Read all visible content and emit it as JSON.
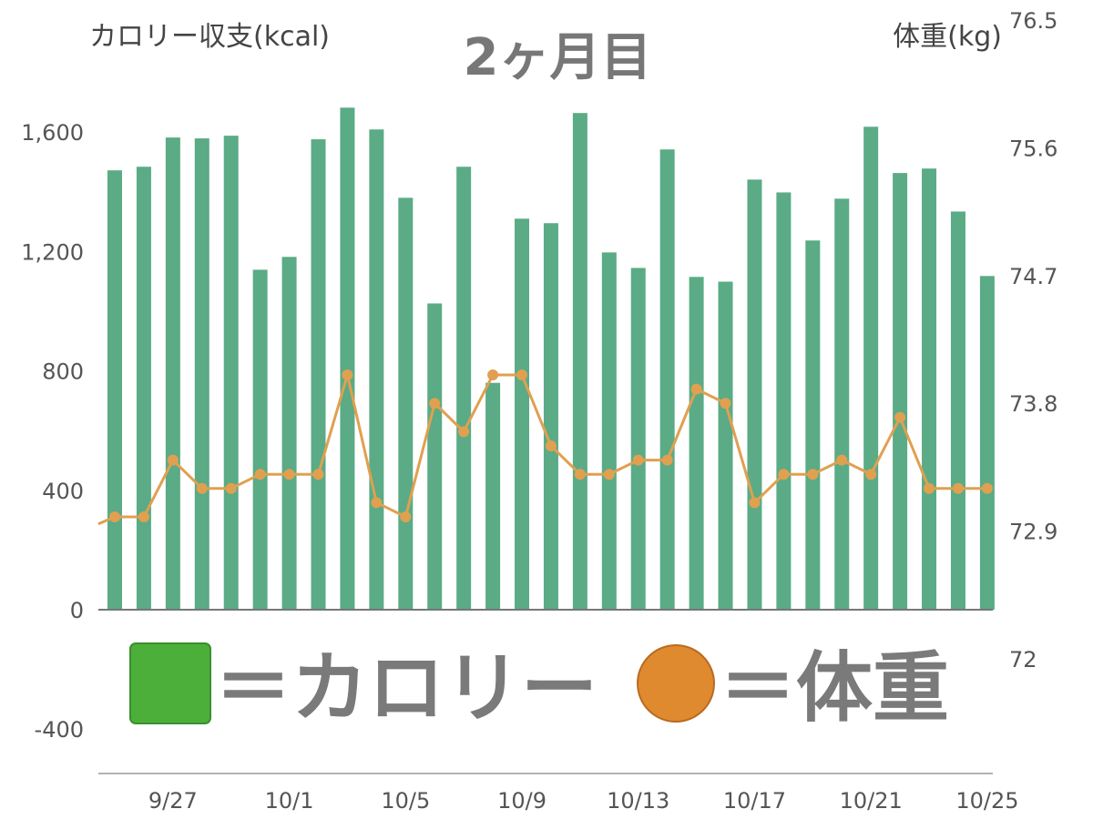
{
  "chart_data": {
    "type": "bar+line",
    "title": "2ヶ月目",
    "ylabel_left": "カロリー収支(kcal)",
    "ylabel_right": "体重(kg)",
    "ylim_left": [
      -400,
      1600
    ],
    "yticks_left": [
      "-400",
      "0",
      "400",
      "800",
      "1,200",
      "1,600"
    ],
    "yticks_left_values": [
      -400,
      0,
      400,
      800,
      1200,
      1600
    ],
    "ylim_right": [
      72,
      76.5
    ],
    "yticks_right": [
      "72",
      "72.9",
      "73.8",
      "74.7",
      "75.6",
      "76.5"
    ],
    "yticks_right_values": [
      72,
      72.9,
      73.8,
      74.7,
      75.6,
      76.5
    ],
    "categories": [
      "9/25",
      "9/26",
      "9/27",
      "9/28",
      "9/29",
      "9/30",
      "10/1",
      "10/2",
      "10/3",
      "10/4",
      "10/5",
      "10/6",
      "10/7",
      "10/8",
      "10/9",
      "10/10",
      "10/11",
      "10/12",
      "10/13",
      "10/14",
      "10/15",
      "10/16",
      "10/17",
      "10/18",
      "10/19",
      "10/20",
      "10/21",
      "10/22",
      "10/23",
      "10/24",
      "10/25"
    ],
    "xtick_labels": [
      "9/27",
      "10/1",
      "10/5",
      "10/9",
      "10/13",
      "10/17",
      "10/21",
      "10/25"
    ],
    "series": [
      {
        "name": "カロリー",
        "type": "bar",
        "color": "#5aab86",
        "values": [
          1472,
          1484,
          1582,
          1579,
          1588,
          1139,
          1182,
          1576,
          1682,
          1609,
          1380,
          1026,
          1484,
          760,
          1310,
          1295,
          1664,
          1197,
          1145,
          1542,
          1115,
          1099,
          1441,
          1398,
          1237,
          1377,
          1618,
          1463,
          1478,
          1334,
          1118
        ]
      },
      {
        "name": "体重",
        "type": "line",
        "color": "#e0a050",
        "values": [
          73.0,
          73.0,
          73.4,
          73.2,
          73.2,
          73.3,
          73.3,
          73.3,
          74.0,
          73.1,
          73.0,
          73.8,
          73.6,
          74.0,
          74.0,
          73.5,
          73.3,
          73.3,
          73.4,
          73.4,
          73.9,
          73.8,
          73.1,
          73.3,
          73.3,
          73.4,
          73.3,
          73.7,
          73.2,
          73.2,
          73.2
        ],
        "previous_value": 72.95
      }
    ],
    "legend": {
      "placement": "bottom-center",
      "items": [
        {
          "text": "＝カロリー",
          "color": "#4caf3a"
        },
        {
          "text": "＝体重",
          "color": "#e08a30"
        }
      ]
    }
  }
}
